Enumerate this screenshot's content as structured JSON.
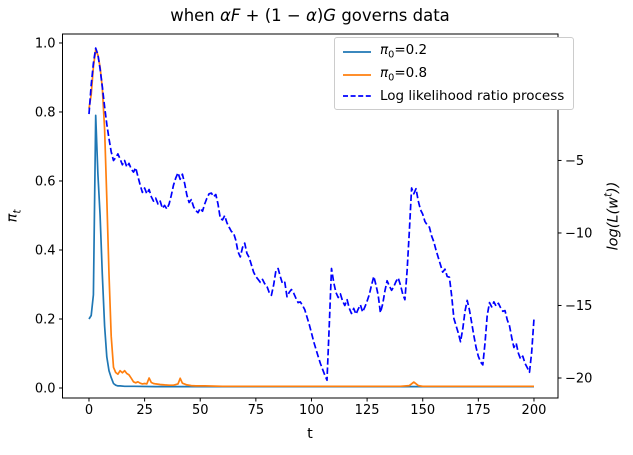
{
  "figure": {
    "background": "#ffffff"
  },
  "title": {
    "plain": "when αF + (1 − α)G governs data",
    "parts": [
      {
        "t": "when "
      },
      {
        "t": "αF",
        "i": true
      },
      {
        "t": " + (1 − "
      },
      {
        "t": "α",
        "i": true
      },
      {
        "t": ")"
      },
      {
        "t": "G",
        "i": true
      },
      {
        "t": " governs data"
      }
    ]
  },
  "axes": {
    "xlabel": "t",
    "ylabel_left": {
      "plain": "πt",
      "parts": [
        {
          "t": "π",
          "i": true
        },
        {
          "t": "t",
          "i": true,
          "sub": true
        }
      ]
    },
    "ylabel_right": {
      "plain": "log(L(wt))",
      "parts": [
        {
          "t": "log(L(w",
          "i": true
        },
        {
          "t": "t",
          "i": true,
          "sup": true
        },
        {
          "t": "))",
          "i": true
        }
      ]
    },
    "xticks": [
      {
        "v": 0,
        "label": "0"
      },
      {
        "v": 25,
        "label": "25"
      },
      {
        "v": 50,
        "label": "50"
      },
      {
        "v": 75,
        "label": "75"
      },
      {
        "v": 100,
        "label": "100"
      },
      {
        "v": 125,
        "label": "125"
      },
      {
        "v": 150,
        "label": "150"
      },
      {
        "v": 175,
        "label": "175"
      },
      {
        "v": 200,
        "label": "200"
      }
    ],
    "yticks_left": [
      {
        "v": 0.0,
        "label": "0.0"
      },
      {
        "v": 0.2,
        "label": "0.2"
      },
      {
        "v": 0.4,
        "label": "0.4"
      },
      {
        "v": 0.6,
        "label": "0.6"
      },
      {
        "v": 0.8,
        "label": "0.8"
      },
      {
        "v": 1.0,
        "label": "1.0"
      }
    ],
    "yticks_right": [
      {
        "v": 0,
        "label": "0"
      },
      {
        "v": -5,
        "label": "−5"
      },
      {
        "v": -10,
        "label": "−10"
      },
      {
        "v": -15,
        "label": "−15"
      },
      {
        "v": -20,
        "label": "−20"
      }
    ]
  },
  "legend": {
    "items": [
      {
        "plain": "π0=0.2",
        "parts": [
          {
            "t": "π",
            "i": true
          },
          {
            "t": "0",
            "sub": true
          },
          {
            "t": "=0.2"
          }
        ],
        "color": "#1f77b4",
        "dash": false
      },
      {
        "plain": "π0=0.8",
        "parts": [
          {
            "t": "π",
            "i": true
          },
          {
            "t": "0",
            "sub": true
          },
          {
            "t": "=0.8"
          }
        ],
        "color": "#ff7f0e",
        "dash": false
      },
      {
        "plain": "Log likelihood ratio process",
        "parts": [
          {
            "t": "Log likelihood ratio process"
          }
        ],
        "color": "#0000ff",
        "dash": true
      }
    ]
  },
  "chart_data": {
    "type": "line",
    "title": "when αF + (1 − α)G governs data",
    "xlabel": "t",
    "ylabel_left": "π_t",
    "ylabel_right": "log(L(w^t))",
    "xlim": [
      -11.9,
      210.8
    ],
    "ylim_left": [
      -0.029,
      1.026
    ],
    "ylim_right": [
      -21.38,
      3.72
    ],
    "grid": false,
    "legend_position": "upper right",
    "series": [
      {
        "name": "π0=0.2",
        "axis": "left",
        "color": "#1f77b4",
        "style": "solid",
        "points": [
          [
            0,
            0.2
          ],
          [
            1,
            0.21
          ],
          [
            2,
            0.27
          ],
          [
            3,
            0.79
          ],
          [
            4,
            0.62
          ],
          [
            5,
            0.5
          ],
          [
            6,
            0.33
          ],
          [
            7,
            0.18
          ],
          [
            8,
            0.09
          ],
          [
            9,
            0.05
          ],
          [
            10,
            0.03
          ],
          [
            11,
            0.013
          ],
          [
            12,
            0.008
          ],
          [
            13,
            0.006
          ],
          [
            14,
            0.006
          ],
          [
            16,
            0.005
          ],
          [
            20,
            0.005
          ],
          [
            30,
            0.004
          ],
          [
            50,
            0.004
          ],
          [
            80,
            0.004
          ],
          [
            120,
            0.004
          ],
          [
            160,
            0.004
          ],
          [
            200,
            0.004
          ]
        ]
      },
      {
        "name": "π0=0.8",
        "axis": "left",
        "color": "#ff7f0e",
        "style": "solid",
        "points": [
          [
            0,
            0.81
          ],
          [
            1,
            0.85
          ],
          [
            2,
            0.93
          ],
          [
            3,
            0.98
          ],
          [
            4,
            0.965
          ],
          [
            5,
            0.93
          ],
          [
            6,
            0.87
          ],
          [
            7,
            0.75
          ],
          [
            8,
            0.55
          ],
          [
            9,
            0.33
          ],
          [
            10,
            0.15
          ],
          [
            11,
            0.06
          ],
          [
            12,
            0.045
          ],
          [
            13,
            0.04
          ],
          [
            14,
            0.05
          ],
          [
            15,
            0.044
          ],
          [
            16,
            0.05
          ],
          [
            17,
            0.042
          ],
          [
            18,
            0.038
          ],
          [
            19,
            0.028
          ],
          [
            20,
            0.018
          ],
          [
            21,
            0.015
          ],
          [
            22,
            0.018
          ],
          [
            23,
            0.014
          ],
          [
            24,
            0.012
          ],
          [
            25,
            0.013
          ],
          [
            26,
            0.012
          ],
          [
            27,
            0.029
          ],
          [
            28,
            0.016
          ],
          [
            29,
            0.013
          ],
          [
            30,
            0.012
          ],
          [
            32,
            0.01
          ],
          [
            34,
            0.009
          ],
          [
            36,
            0.008
          ],
          [
            38,
            0.008
          ],
          [
            40,
            0.012
          ],
          [
            41,
            0.028
          ],
          [
            42,
            0.014
          ],
          [
            44,
            0.009
          ],
          [
            46,
            0.007
          ],
          [
            48,
            0.006
          ],
          [
            52,
            0.006
          ],
          [
            60,
            0.005
          ],
          [
            80,
            0.005
          ],
          [
            100,
            0.005
          ],
          [
            120,
            0.005
          ],
          [
            140,
            0.005
          ],
          [
            144,
            0.007
          ],
          [
            146,
            0.017
          ],
          [
            148,
            0.007
          ],
          [
            150,
            0.005
          ],
          [
            170,
            0.005
          ],
          [
            200,
            0.005
          ]
        ]
      },
      {
        "name": "Log likelihood ratio process",
        "axis": "right",
        "color": "#0000ff",
        "style": "dashed",
        "x_start": 0,
        "x_step": 1,
        "values": [
          -1.8,
          0.2,
          1.7,
          2.75,
          2.3,
          1.3,
          0.1,
          -1.3,
          -2.5,
          -3.5,
          -4.4,
          -5.0,
          -4.8,
          -4.55,
          -4.9,
          -5.3,
          -5.0,
          -5.45,
          -5.2,
          -5.6,
          -5.8,
          -5.5,
          -6.1,
          -6.7,
          -7.2,
          -6.9,
          -7.3,
          -7.0,
          -7.5,
          -7.8,
          -7.6,
          -8.0,
          -7.8,
          -8.3,
          -8.1,
          -8.35,
          -8.0,
          -7.4,
          -6.7,
          -6.2,
          -5.85,
          -6.3,
          -5.95,
          -6.6,
          -7.4,
          -7.9,
          -7.7,
          -8.2,
          -8.45,
          -8.6,
          -8.3,
          -8.5,
          -8.0,
          -7.6,
          -7.3,
          -7.25,
          -7.5,
          -7.35,
          -8.0,
          -9.0,
          -9.1,
          -8.8,
          -9.3,
          -9.6,
          -9.9,
          -10.0,
          -10.5,
          -11.3,
          -11.65,
          -11.0,
          -10.7,
          -11.4,
          -11.7,
          -12.2,
          -12.7,
          -13.0,
          -13.2,
          -13.4,
          -13.2,
          -13.5,
          -13.7,
          -14.1,
          -14.3,
          -13.6,
          -12.6,
          -12.45,
          -13.0,
          -13.5,
          -13.4,
          -14.4,
          -14.1,
          -13.9,
          -14.15,
          -14.5,
          -14.8,
          -14.75,
          -15.0,
          -15.3,
          -15.8,
          -16.3,
          -16.9,
          -17.5,
          -18.0,
          -18.5,
          -19.0,
          -19.4,
          -19.8,
          -20.15,
          -16.3,
          -12.45,
          -13.4,
          -14.1,
          -14.45,
          -14.2,
          -14.7,
          -15.0,
          -14.6,
          -15.2,
          -15.55,
          -15.2,
          -15.6,
          -15.25,
          -14.95,
          -15.45,
          -15.1,
          -14.7,
          -14.25,
          -13.6,
          -13.0,
          -13.6,
          -14.3,
          -15.5,
          -14.9,
          -14.0,
          -13.3,
          -13.65,
          -13.95,
          -13.7,
          -13.35,
          -13.1,
          -13.6,
          -14.2,
          -14.6,
          -12.6,
          -9.8,
          -6.9,
          -7.3,
          -6.95,
          -7.8,
          -8.4,
          -8.7,
          -9.2,
          -9.45,
          -9.6,
          -10.2,
          -10.6,
          -11.2,
          -11.7,
          -12.2,
          -12.7,
          -12.5,
          -13.0,
          -13.05,
          -14.3,
          -15.9,
          -16.4,
          -16.9,
          -17.5,
          -16.6,
          -15.4,
          -14.65,
          -15.3,
          -16.2,
          -17.1,
          -17.9,
          -18.5,
          -18.9,
          -19.1,
          -17.6,
          -15.7,
          -14.8,
          -15.1,
          -14.75,
          -15.05,
          -14.85,
          -15.15,
          -15.4,
          -15.35,
          -16.0,
          -16.4,
          -17.2,
          -17.9,
          -17.6,
          -18.3,
          -18.7,
          -18.5,
          -19.0,
          -19.3,
          -19.6,
          -18.2,
          -15.9
        ]
      }
    ]
  }
}
